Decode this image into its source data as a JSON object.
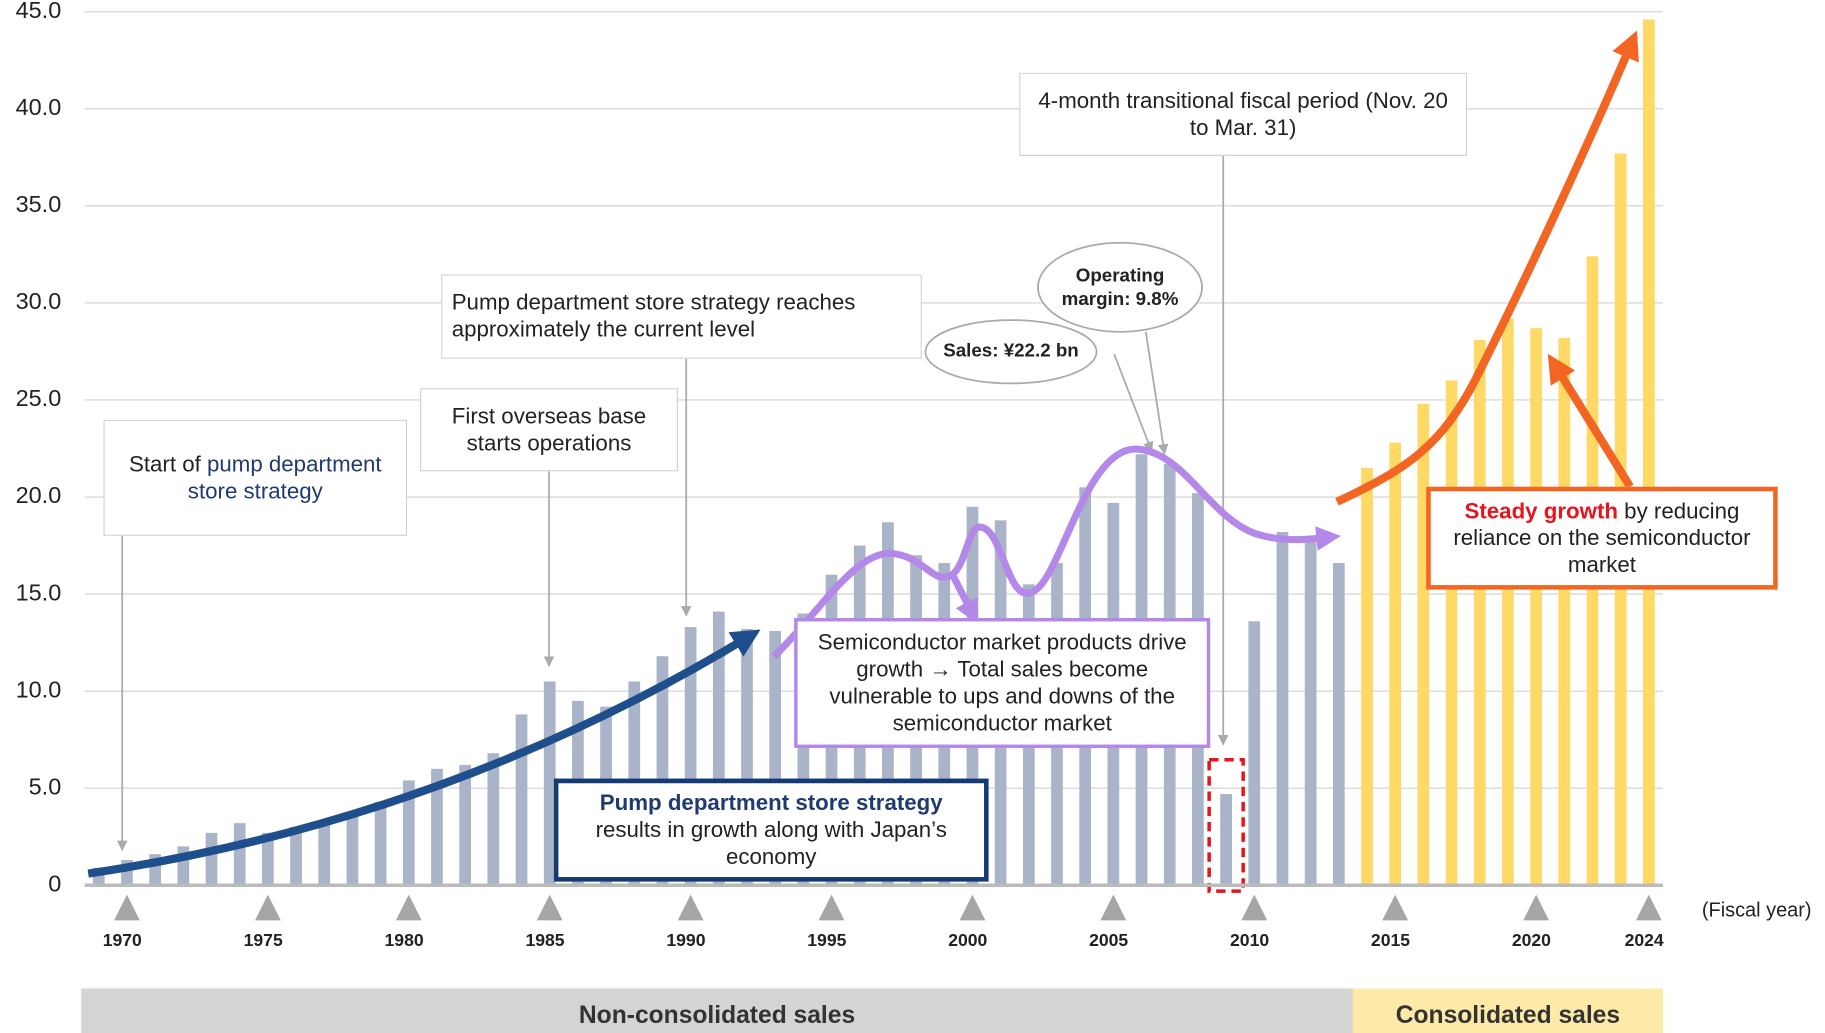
{
  "chart_data": {
    "type": "bar",
    "categories": [
      null,
      "1970",
      null,
      null,
      null,
      null,
      "1975",
      null,
      null,
      null,
      null,
      "1980",
      null,
      null,
      null,
      null,
      "1985",
      null,
      null,
      null,
      null,
      "1990",
      null,
      null,
      null,
      null,
      "1995",
      null,
      null,
      null,
      null,
      "2000",
      null,
      null,
      null,
      null,
      "2005",
      null,
      null,
      null,
      null,
      "2010",
      null,
      null,
      null,
      null,
      "2015",
      null,
      null,
      null,
      null,
      "2020",
      null,
      null,
      null,
      "2024"
    ],
    "series": [
      {
        "name": "Non-consolidated sales",
        "color": "#aab4c8",
        "band_color": "#d4d4d4",
        "values": [
          0.9,
          1.3,
          1.6,
          2.0,
          2.7,
          3.2,
          2.7,
          3.0,
          3.3,
          3.6,
          4.3,
          5.4,
          6.0,
          6.2,
          6.8,
          8.8,
          10.5,
          9.5,
          9.2,
          10.5,
          11.8,
          13.3,
          14.1,
          13.2,
          13.1,
          14.0,
          16.0,
          17.5,
          18.7,
          17.0,
          16.6,
          19.5,
          18.8,
          15.5,
          16.6,
          20.5,
          19.7,
          22.2,
          21.7,
          20.2,
          4.7,
          13.6,
          18.2,
          17.8,
          16.6,
          null,
          null,
          null,
          null,
          null,
          null,
          null,
          null,
          null,
          null,
          null
        ]
      },
      {
        "name": "Consolidated sales",
        "color": "#ffd966",
        "band_color": "#fde9a8",
        "values": [
          null,
          null,
          null,
          null,
          null,
          null,
          null,
          null,
          null,
          null,
          null,
          null,
          null,
          null,
          null,
          null,
          null,
          null,
          null,
          null,
          null,
          null,
          null,
          null,
          null,
          null,
          null,
          null,
          null,
          null,
          null,
          null,
          null,
          null,
          null,
          null,
          null,
          null,
          null,
          null,
          null,
          null,
          null,
          null,
          null,
          21.5,
          22.8,
          24.8,
          26.0,
          28.1,
          29.2,
          28.7,
          28.2,
          32.4,
          37.7,
          44.6
        ]
      }
    ],
    "ylim": [
      0,
      45
    ],
    "yticks": [
      0,
      {
        "value": 5,
        "label": "5.0"
      },
      {
        "value": 10,
        "label": "10.0"
      },
      {
        "value": 15,
        "label": "15.0"
      },
      {
        "value": 20,
        "label": "20.0"
      },
      {
        "value": 25,
        "label": "25.0"
      },
      {
        "value": 30,
        "label": "30.0"
      },
      {
        "value": 35,
        "label": "35.0"
      },
      {
        "value": 40,
        "label": "40.0"
      },
      {
        "value": 45,
        "label": "45.0"
      }
    ],
    "grid": true,
    "x_label": "(Fiscal year)",
    "annotations": [
      {
        "runs": [
          {
            "text": "Start of "
          },
          {
            "text": "pump department store strategy",
            "color": "#1f3a70"
          }
        ]
      },
      {
        "runs": [
          {
            "text": "First overseas base starts operations"
          }
        ]
      },
      {
        "runs": [
          {
            "text": "Pump department store strategy reaches approximately the current level"
          }
        ]
      },
      {
        "runs": [
          {
            "text": "4-month transitional fiscal period (Nov. 20 to Mar. 31)"
          }
        ]
      },
      {
        "runs": [
          {
            "text": "Sales: ¥22.2 bn",
            "bold": true
          }
        ]
      },
      {
        "runs": [
          {
            "text": "Operating margin: 9.8%",
            "bold": true
          }
        ]
      },
      {
        "runs": [
          {
            "text": "Semiconductor market products drive growth → Total sales become vulnerable to ups and downs of the semiconductor market"
          }
        ]
      },
      {
        "runs": [
          {
            "text": "Pump department store strategy",
            "color": "#1f3a70",
            "bold": true
          },
          {
            "text": " results in growth along with Japan’s economy"
          }
        ]
      },
      {
        "runs": [
          {
            "text": "Steady growth",
            "color": "#e8141b",
            "bold": true
          },
          {
            "text": " by reducing reliance on the semiconductor market"
          }
        ]
      }
    ]
  }
}
